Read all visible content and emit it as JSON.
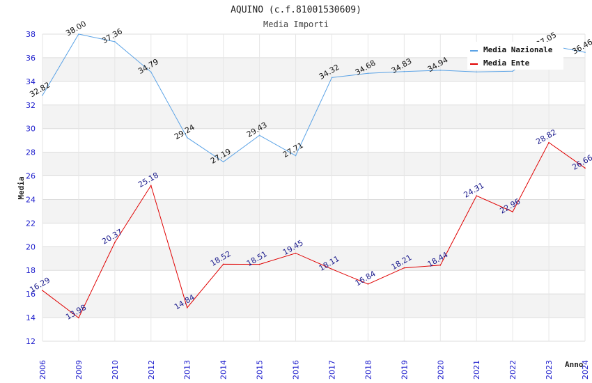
{
  "chart_data": {
    "type": "line",
    "title": "AQUINO (c.f.81001530609)",
    "subtitle": "Media Importi",
    "xlabel": "Anno",
    "ylabel": "Media",
    "ylim": [
      12,
      38
    ],
    "yticks": [
      12,
      14,
      16,
      18,
      20,
      22,
      24,
      26,
      28,
      30,
      32,
      34,
      36,
      38
    ],
    "categories": [
      "2006",
      "2009",
      "2010",
      "2012",
      "2013",
      "2014",
      "2015",
      "2016",
      "2017",
      "2018",
      "2019",
      "2020",
      "2021",
      "2022",
      "2023",
      "2024"
    ],
    "legend_position": "top-right",
    "grid": true,
    "series": [
      {
        "name": "Media Nazionale",
        "color": "#5ba3e6",
        "label_color": "#111111",
        "values": [
          32.82,
          38.0,
          37.36,
          34.79,
          29.24,
          27.19,
          29.43,
          27.71,
          34.32,
          34.68,
          34.83,
          34.94,
          34.8,
          34.86,
          37.05,
          36.46
        ],
        "labels": [
          "32.82",
          "38.00",
          "37.36",
          "34.79",
          "29.24",
          "27.19",
          "29.43",
          "27.71",
          "34.32",
          "34.68",
          "34.83",
          "34.94",
          "",
          "",
          "37.05",
          "36.46"
        ]
      },
      {
        "name": "Media Ente",
        "color": "#e00000",
        "label_color": "#1a1a8c",
        "values": [
          16.29,
          13.98,
          20.37,
          25.18,
          14.84,
          18.52,
          18.51,
          19.45,
          18.11,
          16.84,
          18.21,
          18.44,
          24.31,
          22.96,
          28.82,
          26.66
        ],
        "labels": [
          "16.29",
          "13.98",
          "20.37",
          "25.18",
          "14.84",
          "18.52",
          "18.51",
          "19.45",
          "18.11",
          "16.84",
          "18.21",
          "18.44",
          "24.31",
          "22.96",
          "28.82",
          "26.66"
        ]
      }
    ]
  }
}
